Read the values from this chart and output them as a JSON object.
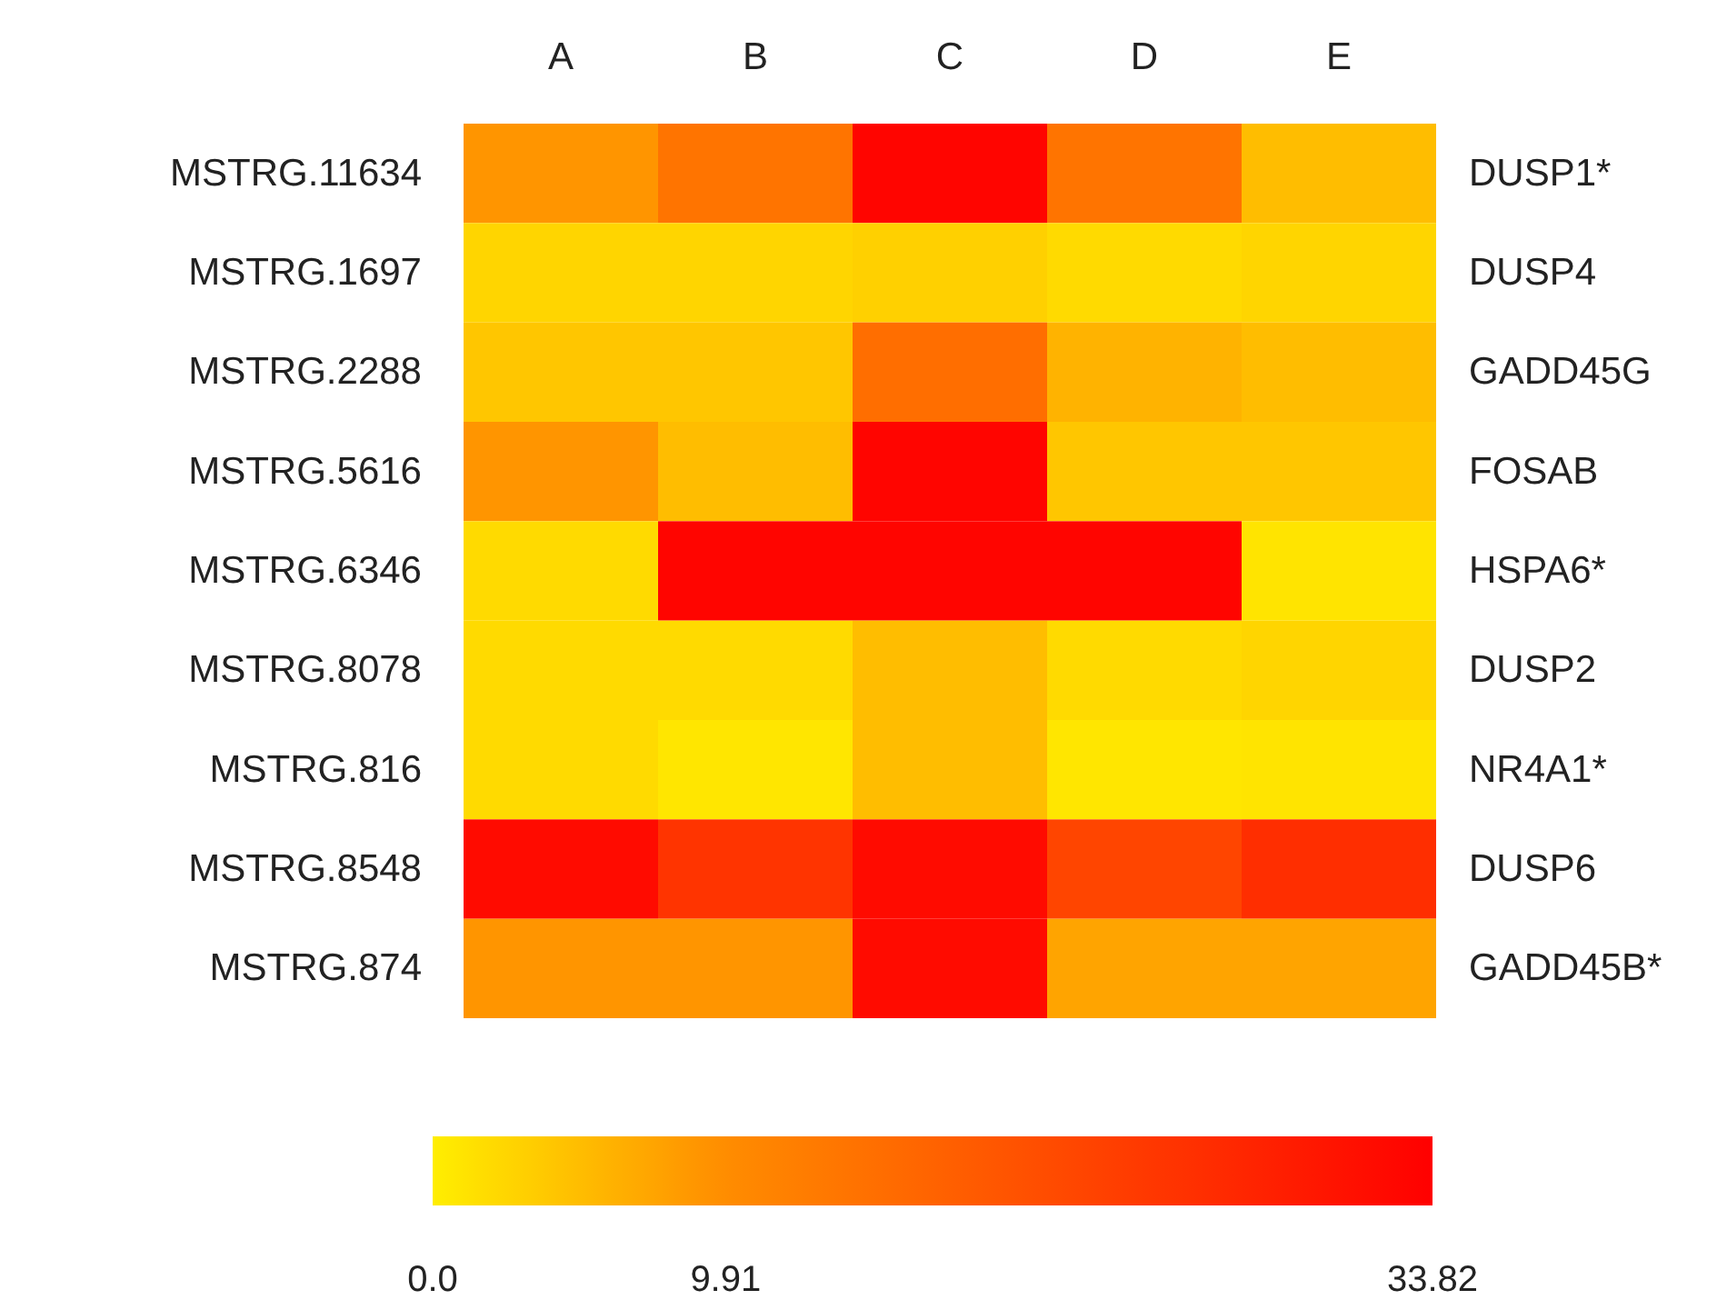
{
  "chart_data": {
    "type": "heatmap",
    "categories": [
      "A",
      "B",
      "C",
      "D",
      "E"
    ],
    "y_categories": [
      "MSTRG.11634",
      "MSTRG.1697",
      "MSTRG.2288",
      "MSTRG.5616",
      "MSTRG.6346",
      "MSTRG.8078",
      "MSTRG.816",
      "MSTRG.8548",
      "MSTRG.874"
    ],
    "y2_categories": [
      "DUSP1*",
      "DUSP4",
      "GADD45G",
      "FOSAB",
      "HSPA6*",
      "DUSP2",
      "NR4A1*",
      "DUSP6",
      "GADD45B*"
    ],
    "cells": [
      [
        9,
        14,
        33,
        14,
        5
      ],
      [
        2.5,
        2.5,
        3,
        2,
        2.5
      ],
      [
        4,
        4,
        15,
        6,
        5
      ],
      [
        9,
        5,
        33,
        4,
        4
      ],
      [
        2,
        33,
        33,
        33,
        1
      ],
      [
        2,
        2,
        5,
        2,
        2.5
      ],
      [
        2,
        0.8,
        5,
        0.8,
        1
      ],
      [
        32,
        25,
        32,
        22,
        26
      ],
      [
        9,
        9,
        32,
        7.5,
        7.5
      ]
    ],
    "colors": [
      "#ffee00",
      "#ff8c00",
      "#ff0000"
    ],
    "clim": [
      0,
      33.82
    ],
    "cticks": [
      {
        "value": 0,
        "label": "0.0"
      },
      9.91,
      33.82
    ]
  }
}
